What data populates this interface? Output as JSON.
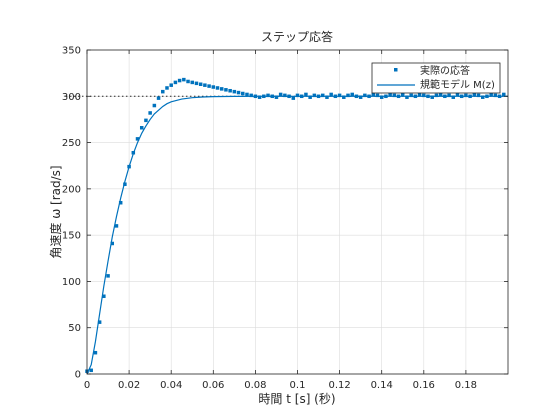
{
  "chart_data": {
    "type": "scatter",
    "title": "ステップ応答",
    "xlabel": "時間 t [s] (秒)",
    "ylabel": "角速度 ω [rad/s]",
    "xlim": [
      0,
      0.2
    ],
    "ylim": [
      0,
      350
    ],
    "xticks": [
      0,
      0.02,
      0.04,
      0.06,
      0.08,
      0.1,
      0.12,
      0.14,
      0.16,
      0.18
    ],
    "xtick_labels": [
      "0",
      "0.02",
      "0.04",
      "0.06",
      "0.08",
      "0.1",
      "0.12",
      "0.14",
      "0.16",
      "0.18"
    ],
    "yticks": [
      0,
      50,
      100,
      150,
      200,
      250,
      300,
      350
    ],
    "ytick_labels": [
      "0",
      "50",
      "100",
      "150",
      "200",
      "250",
      "300",
      "350"
    ],
    "grid": true,
    "legend_position": "top-right",
    "reference_line": {
      "y": 300,
      "style": "dotted",
      "x_range": [
        -0.01,
        0.2
      ]
    },
    "series": [
      {
        "name": "実際の応答",
        "style": "markers",
        "color": "#0072BD",
        "x": [
          0.0,
          0.002,
          0.004,
          0.006,
          0.008,
          0.01,
          0.012,
          0.014,
          0.016,
          0.018,
          0.02,
          0.022,
          0.024,
          0.026,
          0.028,
          0.03,
          0.032,
          0.034,
          0.036,
          0.038,
          0.04,
          0.042,
          0.044,
          0.046,
          0.048,
          0.05,
          0.052,
          0.054,
          0.056,
          0.058,
          0.06,
          0.062,
          0.064,
          0.066,
          0.068,
          0.07,
          0.072,
          0.074,
          0.076,
          0.078,
          0.08,
          0.082,
          0.084,
          0.086,
          0.088,
          0.09,
          0.092,
          0.094,
          0.096,
          0.098,
          0.1,
          0.102,
          0.104,
          0.106,
          0.108,
          0.11,
          0.112,
          0.114,
          0.116,
          0.118,
          0.12,
          0.122,
          0.124,
          0.126,
          0.128,
          0.13,
          0.132,
          0.134,
          0.136,
          0.138,
          0.14,
          0.142,
          0.144,
          0.146,
          0.148,
          0.15,
          0.152,
          0.154,
          0.156,
          0.158,
          0.16,
          0.162,
          0.164,
          0.166,
          0.168,
          0.17,
          0.172,
          0.174,
          0.176,
          0.178,
          0.18,
          0.182,
          0.184,
          0.186,
          0.188,
          0.19,
          0.192,
          0.194,
          0.196,
          0.198
        ],
        "y": [
          3,
          4,
          23,
          56,
          84,
          106,
          141,
          160,
          185,
          205,
          224,
          239,
          254,
          266,
          274,
          282,
          290,
          298,
          305,
          309,
          312,
          315,
          317,
          318,
          316,
          315,
          314,
          313,
          312,
          311,
          310,
          309,
          308,
          307,
          306,
          305,
          304,
          303,
          302,
          301,
          300,
          299,
          300,
          301,
          300,
          299,
          302,
          301,
          300,
          298,
          301,
          300,
          302,
          299,
          301,
          300,
          301,
          299,
          302,
          300,
          301,
          299,
          301,
          302,
          300,
          299,
          301,
          300,
          302,
          301,
          299,
          300,
          302,
          301,
          300,
          302,
          299,
          301,
          300,
          302,
          301,
          300,
          299,
          301,
          302,
          300,
          301,
          299,
          302,
          300,
          301,
          300,
          302,
          301,
          299,
          300,
          302,
          301,
          300,
          302
        ]
      },
      {
        "name": "規範モデル M(z)",
        "style": "line",
        "color": "#0072BD",
        "x": [
          0,
          0.002,
          0.004,
          0.006,
          0.008,
          0.01,
          0.012,
          0.014,
          0.016,
          0.018,
          0.02,
          0.022,
          0.024,
          0.026,
          0.028,
          0.03,
          0.032,
          0.034,
          0.036,
          0.038,
          0.04,
          0.045,
          0.05,
          0.055,
          0.06,
          0.065,
          0.07,
          0.08,
          0.09,
          0.1,
          0.12,
          0.14,
          0.16,
          0.18,
          0.2
        ],
        "y": [
          0,
          10,
          35,
          65,
          95,
          122,
          148,
          170,
          190,
          208,
          224,
          238,
          250,
          260,
          268,
          275,
          281,
          285,
          289,
          292,
          294,
          297,
          298.5,
          299.2,
          299.6,
          299.8,
          299.9,
          300,
          300,
          300,
          300,
          300,
          300,
          300,
          300
        ]
      }
    ]
  }
}
